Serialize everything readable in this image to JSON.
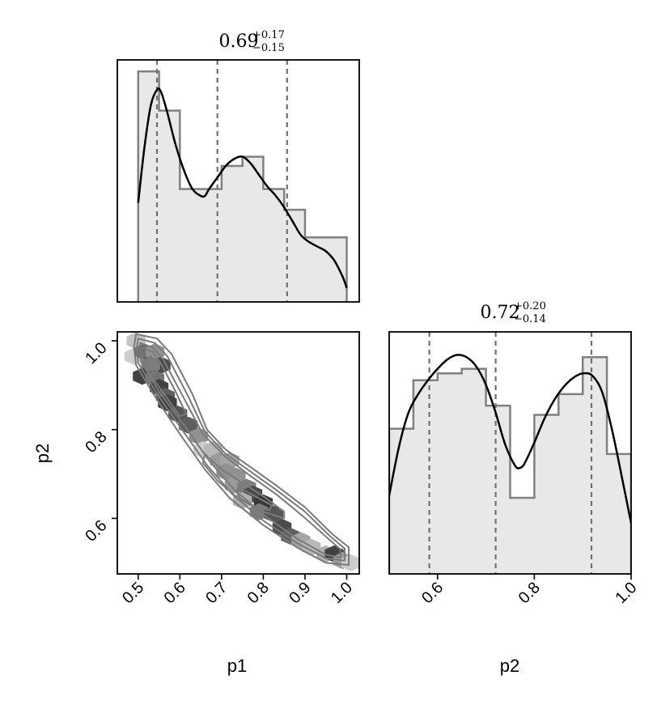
{
  "chart_data": [
    {
      "type": "histogram",
      "panel": "p1-marginal",
      "title": {
        "median": "0.69",
        "plus": "+0.17",
        "minus": "−0.15"
      },
      "bin_edges": [
        0.5,
        0.55,
        0.6,
        0.65,
        0.7,
        0.75,
        0.8,
        0.85,
        0.9,
        0.95,
        1.0
      ],
      "counts": [
        1.0,
        0.83,
        0.49,
        0.49,
        0.59,
        0.63,
        0.49,
        0.4,
        0.28,
        0.28
      ],
      "kde": {
        "x": [
          0.5,
          0.515,
          0.53,
          0.545,
          0.555,
          0.57,
          0.59,
          0.61,
          0.63,
          0.65,
          0.66,
          0.67,
          0.69,
          0.71,
          0.73,
          0.75,
          0.77,
          0.79,
          0.81,
          0.83,
          0.85,
          0.87,
          0.89,
          0.91,
          0.93,
          0.95,
          0.97,
          0.99,
          1.0
        ],
        "y": [
          0.43,
          0.67,
          0.85,
          0.92,
          0.91,
          0.82,
          0.68,
          0.57,
          0.49,
          0.46,
          0.46,
          0.49,
          0.54,
          0.59,
          0.62,
          0.63,
          0.6,
          0.55,
          0.5,
          0.46,
          0.41,
          0.35,
          0.29,
          0.26,
          0.24,
          0.22,
          0.18,
          0.11,
          0.06
        ]
      },
      "quantiles": [
        0.545,
        0.69,
        0.857
      ],
      "xlim": [
        0.45,
        1.03
      ],
      "ylim": [
        0,
        1.05
      ]
    },
    {
      "type": "histogram",
      "panel": "p2-marginal",
      "title": {
        "median": "0.72",
        "plus": "+0.20",
        "minus": "−0.14"
      },
      "bin_edges": [
        0.5,
        0.55,
        0.6,
        0.65,
        0.7,
        0.75,
        0.8,
        0.85,
        0.9,
        0.95,
        1.0
      ],
      "counts": [
        0.63,
        0.84,
        0.87,
        0.89,
        0.73,
        0.33,
        0.69,
        0.78,
        0.94,
        0.52
      ],
      "kde": {
        "x": [
          0.5,
          0.52,
          0.54,
          0.56,
          0.58,
          0.6,
          0.62,
          0.64,
          0.66,
          0.68,
          0.7,
          0.72,
          0.74,
          0.76,
          0.77,
          0.78,
          0.8,
          0.82,
          0.84,
          0.86,
          0.88,
          0.9,
          0.92,
          0.94,
          0.96,
          0.98,
          1.0
        ],
        "y": [
          0.34,
          0.55,
          0.7,
          0.78,
          0.84,
          0.89,
          0.93,
          0.95,
          0.94,
          0.9,
          0.82,
          0.7,
          0.56,
          0.47,
          0.46,
          0.48,
          0.57,
          0.67,
          0.75,
          0.81,
          0.85,
          0.87,
          0.86,
          0.79,
          0.63,
          0.43,
          0.22
        ]
      },
      "quantiles": [
        0.583,
        0.72,
        0.918
      ],
      "xlim": [
        0.5,
        1.0
      ],
      "ylim": [
        0,
        1.05
      ],
      "xticks": [
        "0.6",
        "0.8",
        "1.0"
      ],
      "xlabel": "p2"
    },
    {
      "type": "hexbin-contour",
      "panel": "p1-p2-joint",
      "xlabel": "p1",
      "ylabel": "p2",
      "xlim": [
        0.45,
        1.03
      ],
      "ylim": [
        0.475,
        1.02
      ],
      "xticks": [
        "0.5",
        "0.6",
        "0.7",
        "0.8",
        "0.9",
        "1.0"
      ],
      "yticks": [
        "0.6",
        "0.8",
        "1.0"
      ],
      "hexbins": [
        {
          "x": 0.495,
          "y": 1.0,
          "w": 0.2
        },
        {
          "x": 0.49,
          "y": 0.965,
          "w": 0.15
        },
        {
          "x": 0.515,
          "y": 0.975,
          "w": 0.65
        },
        {
          "x": 0.54,
          "y": 0.975,
          "w": 0.45
        },
        {
          "x": 0.555,
          "y": 0.945,
          "w": 0.8
        },
        {
          "x": 0.53,
          "y": 0.945,
          "w": 0.55
        },
        {
          "x": 0.51,
          "y": 0.92,
          "w": 0.85
        },
        {
          "x": 0.54,
          "y": 0.915,
          "w": 0.6
        },
        {
          "x": 0.55,
          "y": 0.895,
          "w": 0.85
        },
        {
          "x": 0.565,
          "y": 0.875,
          "w": 0.7
        },
        {
          "x": 0.57,
          "y": 0.86,
          "w": 0.85
        },
        {
          "x": 0.595,
          "y": 0.835,
          "w": 0.75
        },
        {
          "x": 0.62,
          "y": 0.81,
          "w": 0.7
        },
        {
          "x": 0.645,
          "y": 0.785,
          "w": 0.45
        },
        {
          "x": 0.655,
          "y": 0.755,
          "w": 0.15
        },
        {
          "x": 0.68,
          "y": 0.755,
          "w": 0.25
        },
        {
          "x": 0.695,
          "y": 0.73,
          "w": 0.4
        },
        {
          "x": 0.72,
          "y": 0.73,
          "w": 0.35
        },
        {
          "x": 0.71,
          "y": 0.705,
          "w": 0.45
        },
        {
          "x": 0.735,
          "y": 0.695,
          "w": 0.45
        },
        {
          "x": 0.73,
          "y": 0.675,
          "w": 0.4
        },
        {
          "x": 0.76,
          "y": 0.67,
          "w": 0.55
        },
        {
          "x": 0.775,
          "y": 0.655,
          "w": 0.8
        },
        {
          "x": 0.75,
          "y": 0.64,
          "w": 0.3
        },
        {
          "x": 0.8,
          "y": 0.635,
          "w": 0.9
        },
        {
          "x": 0.79,
          "y": 0.615,
          "w": 0.55
        },
        {
          "x": 0.825,
          "y": 0.61,
          "w": 0.75
        },
        {
          "x": 0.845,
          "y": 0.58,
          "w": 0.8
        },
        {
          "x": 0.865,
          "y": 0.56,
          "w": 0.7
        },
        {
          "x": 0.89,
          "y": 0.55,
          "w": 0.35
        },
        {
          "x": 0.915,
          "y": 0.535,
          "w": 0.25
        },
        {
          "x": 0.95,
          "y": 0.52,
          "w": 0.3
        },
        {
          "x": 0.97,
          "y": 0.52,
          "w": 0.85
        },
        {
          "x": 0.99,
          "y": 0.505,
          "w": 0.4
        },
        {
          "x": 1.01,
          "y": 0.5,
          "w": 0.15
        }
      ],
      "contours": [
        {
          "name": "outer",
          "points": [
            [
              0.495,
              1.015
            ],
            [
              0.545,
              1.005
            ],
            [
              0.58,
              0.97
            ],
            [
              0.63,
              0.88
            ],
            [
              0.665,
              0.8
            ],
            [
              0.71,
              0.755
            ],
            [
              0.77,
              0.715
            ],
            [
              0.83,
              0.675
            ],
            [
              0.9,
              0.625
            ],
            [
              0.965,
              0.565
            ],
            [
              1.005,
              0.535
            ],
            [
              1.005,
              0.495
            ],
            [
              0.95,
              0.5
            ],
            [
              0.88,
              0.535
            ],
            [
              0.8,
              0.585
            ],
            [
              0.72,
              0.645
            ],
            [
              0.66,
              0.71
            ],
            [
              0.6,
              0.79
            ],
            [
              0.54,
              0.875
            ],
            [
              0.495,
              0.945
            ],
            [
              0.49,
              0.985
            ]
          ]
        },
        {
          "name": "mid",
          "points": [
            [
              0.5,
              1.005
            ],
            [
              0.54,
              0.995
            ],
            [
              0.57,
              0.965
            ],
            [
              0.62,
              0.875
            ],
            [
              0.66,
              0.795
            ],
            [
              0.71,
              0.745
            ],
            [
              0.77,
              0.705
            ],
            [
              0.83,
              0.665
            ],
            [
              0.9,
              0.615
            ],
            [
              0.96,
              0.56
            ],
            [
              0.995,
              0.532
            ],
            [
              0.995,
              0.505
            ],
            [
              0.95,
              0.51
            ],
            [
              0.88,
              0.545
            ],
            [
              0.8,
              0.595
            ],
            [
              0.725,
              0.655
            ],
            [
              0.665,
              0.72
            ],
            [
              0.605,
              0.8
            ],
            [
              0.545,
              0.88
            ],
            [
              0.5,
              0.95
            ],
            [
              0.497,
              0.985
            ]
          ]
        },
        {
          "name": "inner",
          "points": [
            [
              0.505,
              0.995
            ],
            [
              0.535,
              0.985
            ],
            [
              0.56,
              0.958
            ],
            [
              0.61,
              0.87
            ],
            [
              0.655,
              0.79
            ],
            [
              0.71,
              0.738
            ],
            [
              0.77,
              0.695
            ],
            [
              0.83,
              0.655
            ],
            [
              0.895,
              0.605
            ],
            [
              0.955,
              0.555
            ],
            [
              0.985,
              0.53
            ],
            [
              0.985,
              0.512
            ],
            [
              0.95,
              0.518
            ],
            [
              0.88,
              0.555
            ],
            [
              0.805,
              0.605
            ],
            [
              0.73,
              0.665
            ],
            [
              0.67,
              0.73
            ],
            [
              0.61,
              0.81
            ],
            [
              0.55,
              0.885
            ],
            [
              0.507,
              0.952
            ],
            [
              0.503,
              0.985
            ]
          ]
        },
        {
          "name": "core-a",
          "points": [
            [
              0.51,
              0.985
            ],
            [
              0.535,
              0.975
            ],
            [
              0.555,
              0.948
            ],
            [
              0.59,
              0.885
            ],
            [
              0.615,
              0.835
            ],
            [
              0.6,
              0.83
            ],
            [
              0.57,
              0.87
            ],
            [
              0.535,
              0.915
            ],
            [
              0.512,
              0.95
            ]
          ]
        },
        {
          "name": "core-b",
          "points": [
            [
              0.53,
              0.965
            ],
            [
              0.55,
              0.95
            ],
            [
              0.545,
              0.93
            ],
            [
              0.53,
              0.925
            ],
            [
              0.518,
              0.94
            ],
            [
              0.52,
              0.958
            ]
          ]
        },
        {
          "name": "core-c",
          "points": [
            [
              0.66,
              0.745
            ],
            [
              0.7,
              0.71
            ],
            [
              0.75,
              0.68
            ],
            [
              0.8,
              0.65
            ],
            [
              0.85,
              0.615
            ],
            [
              0.85,
              0.6
            ],
            [
              0.8,
              0.615
            ],
            [
              0.74,
              0.645
            ],
            [
              0.69,
              0.685
            ],
            [
              0.655,
              0.725
            ]
          ]
        },
        {
          "name": "core-d",
          "points": [
            [
              0.74,
              0.67
            ],
            [
              0.79,
              0.645
            ],
            [
              0.82,
              0.63
            ],
            [
              0.815,
              0.618
            ],
            [
              0.78,
              0.625
            ],
            [
              0.745,
              0.645
            ],
            [
              0.735,
              0.66
            ]
          ]
        }
      ]
    }
  ]
}
